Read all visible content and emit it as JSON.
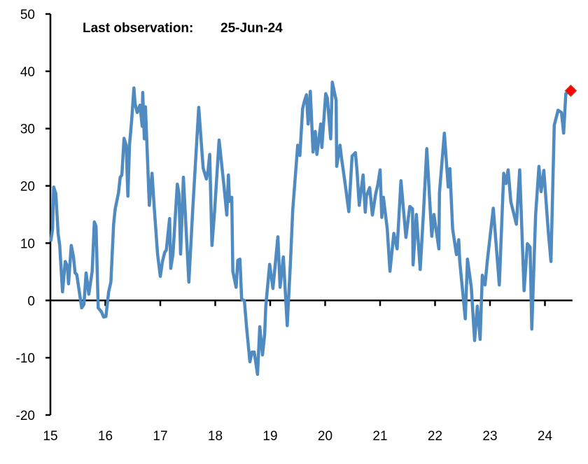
{
  "chart_data": {
    "type": "line",
    "title": "",
    "xlabel": "",
    "ylabel": "",
    "annotation": {
      "label": "Last observation:",
      "value": "25-Jun-24"
    },
    "xlim": [
      15,
      24.5
    ],
    "ylim": [
      -20,
      50
    ],
    "x_ticks": [
      15,
      16,
      17,
      18,
      19,
      20,
      21,
      22,
      23,
      24
    ],
    "x_tick_labels": [
      "15",
      "16",
      "17",
      "18",
      "19",
      "20",
      "21",
      "22",
      "23",
      "24"
    ],
    "y_ticks": [
      -20,
      -10,
      0,
      10,
      20,
      30,
      40,
      50
    ],
    "y_tick_labels": [
      "-20",
      "-10",
      "0",
      "10",
      "20",
      "30",
      "40",
      "50"
    ],
    "grid": false,
    "line_color": "#4f8bc1",
    "marker_color": "#ff0000",
    "series": [
      {
        "x": [
          15.01,
          15.04,
          15.06,
          15.1,
          15.14,
          15.17,
          15.22,
          15.27,
          15.31,
          15.33,
          15.38,
          15.42,
          15.45,
          15.48,
          15.57,
          15.61,
          15.65,
          15.7,
          15.76,
          15.8,
          15.83,
          15.87,
          15.93,
          15.97,
          16.01,
          16.06,
          16.1,
          16.15,
          16.18,
          16.24,
          16.27,
          16.3,
          16.34,
          16.38,
          16.41,
          16.44,
          16.48,
          16.52,
          16.54,
          16.58,
          16.63,
          16.67,
          16.68,
          16.71,
          16.73,
          16.8,
          16.85,
          16.89,
          16.95,
          17.0,
          17.04,
          17.08,
          17.11,
          17.17,
          17.19,
          17.23,
          17.31,
          17.34,
          17.37,
          17.42,
          17.52,
          17.59,
          17.7,
          17.78,
          17.84,
          17.87,
          17.9,
          17.94,
          17.99,
          18.07,
          18.12,
          18.16,
          18.21,
          18.24,
          18.26,
          18.3,
          18.32,
          18.38,
          18.41,
          18.45,
          18.48,
          18.53,
          18.57,
          18.63,
          18.67,
          18.71,
          18.77,
          18.81,
          18.86,
          18.9,
          18.92,
          18.99,
          19.05,
          19.14,
          19.18,
          19.24,
          19.31,
          19.37,
          19.41,
          19.5,
          19.54,
          19.59,
          19.62,
          19.66,
          19.69,
          19.73,
          19.78,
          19.82,
          19.85,
          19.92,
          19.94,
          20.01,
          20.04,
          20.1,
          20.13,
          20.2,
          20.21,
          20.27,
          20.3,
          20.36,
          20.43,
          20.49,
          20.55,
          20.58,
          20.62,
          20.69,
          20.73,
          20.75,
          20.81,
          20.86,
          20.92,
          20.96,
          21.0,
          21.03,
          21.06,
          21.13,
          21.18,
          21.25,
          21.31,
          21.38,
          21.47,
          21.54,
          21.59,
          21.6,
          21.66,
          21.73,
          21.79,
          21.85,
          21.94,
          21.98,
          22.07,
          22.08,
          22.17,
          22.24,
          22.27,
          22.32,
          22.39,
          22.43,
          22.45,
          22.55,
          22.59,
          22.66,
          22.72,
          22.77,
          22.82,
          22.86,
          22.91,
          22.95,
          23.06,
          23.17,
          23.25,
          23.29,
          23.33,
          23.38,
          23.45,
          23.48,
          23.54,
          23.62,
          23.68,
          23.73,
          23.76,
          23.83,
          23.89,
          23.93,
          23.98,
          24.06,
          24.11,
          24.17,
          24.24,
          24.3,
          24.34,
          24.38,
          24.47
        ],
        "y": [
          10.5,
          12.5,
          19.8,
          18.6,
          11.7,
          9.6,
          1.5,
          6.8,
          6.0,
          2.9,
          9.6,
          7.6,
          4.8,
          4.5,
          -1.3,
          -0.7,
          4.8,
          1.1,
          5.1,
          13.7,
          12.9,
          -1.3,
          -2.0,
          -2.9,
          -2.8,
          1.5,
          3.2,
          13.3,
          16.0,
          18.8,
          21.5,
          21.9,
          28.3,
          27.1,
          18.2,
          27.1,
          31.6,
          37.1,
          34.4,
          32.8,
          34.1,
          30.4,
          36.3,
          28.2,
          33.8,
          16.6,
          22.2,
          16.1,
          8.1,
          4.2,
          6.8,
          8.4,
          8.8,
          14.3,
          5.6,
          8.1,
          20.3,
          18.6,
          8.1,
          21.5,
          3.2,
          15.8,
          33.7,
          23.1,
          21.2,
          22.7,
          25.5,
          9.6,
          15.8,
          28.0,
          23.5,
          19.8,
          14.9,
          21.9,
          17.3,
          18.0,
          5.1,
          2.3,
          7.0,
          7.2,
          0.2,
          0.0,
          -4.6,
          -10.7,
          -9.0,
          -9.0,
          -12.9,
          -4.6,
          -9.5,
          -5.9,
          -1.0,
          6.3,
          2.1,
          11.1,
          2.3,
          7.6,
          -4.4,
          6.8,
          15.8,
          27.1,
          25.3,
          33.5,
          34.7,
          35.9,
          30.8,
          36.5,
          25.9,
          29.5,
          25.5,
          30.8,
          26.7,
          36.1,
          35.3,
          28.2,
          38.1,
          34.9,
          23.4,
          27.1,
          24.7,
          20.6,
          15.5,
          25.2,
          25.8,
          22.7,
          16.6,
          21.9,
          15.4,
          18.2,
          19.7,
          14.9,
          18.6,
          20.3,
          22.8,
          14.5,
          18.0,
          12.5,
          5.1,
          11.7,
          9.0,
          20.9,
          11.0,
          16.4,
          16.0,
          6.2,
          15.0,
          5.4,
          15.4,
          26.5,
          11.2,
          15.0,
          9.0,
          18.8,
          29.2,
          19.8,
          23.0,
          12.5,
          8.0,
          10.6,
          6.8,
          -3.2,
          7.2,
          2.3,
          -7.0,
          -1.0,
          -6.8,
          4.4,
          2.7,
          6.8,
          16.1,
          2.7,
          22.2,
          20.4,
          22.8,
          17.2,
          14.5,
          13.3,
          22.8,
          1.7,
          9.9,
          9.3,
          -5.0,
          15.0,
          23.4,
          19.0,
          22.7,
          12.1,
          6.8,
          30.6,
          33.2,
          32.8,
          29.2,
          36.1,
          36.6
        ]
      }
    ],
    "last_point": {
      "x": 24.47,
      "y": 36.6
    }
  }
}
